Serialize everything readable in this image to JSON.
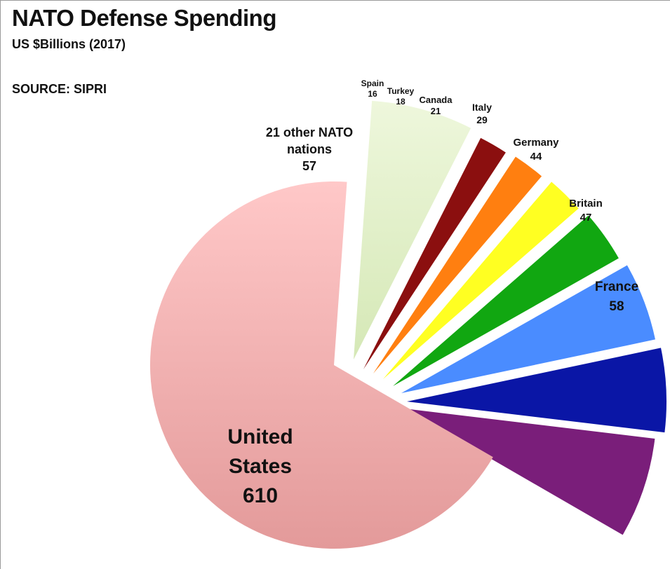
{
  "header": {
    "title": "NATO Defense Spending",
    "subtitle": "US $Billions (2017)",
    "source": "SOURCE: SIPRI"
  },
  "chart_data": {
    "type": "pie",
    "title": "NATO Defense Spending",
    "subtitle": "US $Billions (2017)",
    "source": "SOURCE: SIPRI",
    "unit": "US $Billions",
    "slices": [
      {
        "key": "other",
        "label": "21 other NATO nations",
        "label_lines": [
          "21 other NATO",
          "nations"
        ],
        "value": 57,
        "color": "#e2f0c9"
      },
      {
        "key": "spain",
        "label": "Spain",
        "label_lines": [
          "Spain"
        ],
        "value": 16,
        "color": "#8b0f0f"
      },
      {
        "key": "turkey",
        "label": "Turkey",
        "label_lines": [
          "Turkey"
        ],
        "value": 18,
        "color": "#ff7f10"
      },
      {
        "key": "canada",
        "label": "Canada",
        "label_lines": [
          "Canada"
        ],
        "value": 21,
        "color": "#ffff22"
      },
      {
        "key": "italy",
        "label": "Italy",
        "label_lines": [
          "Italy"
        ],
        "value": 29,
        "color": "#11a711"
      },
      {
        "key": "germany",
        "label": "Germany",
        "label_lines": [
          "Germany"
        ],
        "value": 44,
        "color": "#4a8cff"
      },
      {
        "key": "britain",
        "label": "Britain",
        "label_lines": [
          "Britain"
        ],
        "value": 47,
        "color": "#0a16a6"
      },
      {
        "key": "france",
        "label": "France",
        "label_lines": [
          "France"
        ],
        "value": 58,
        "color": "#7a1e7a"
      },
      {
        "key": "us",
        "label": "United States",
        "label_lines": [
          "United",
          "States"
        ],
        "value": 610,
        "color": "#f0a8a8"
      }
    ]
  }
}
